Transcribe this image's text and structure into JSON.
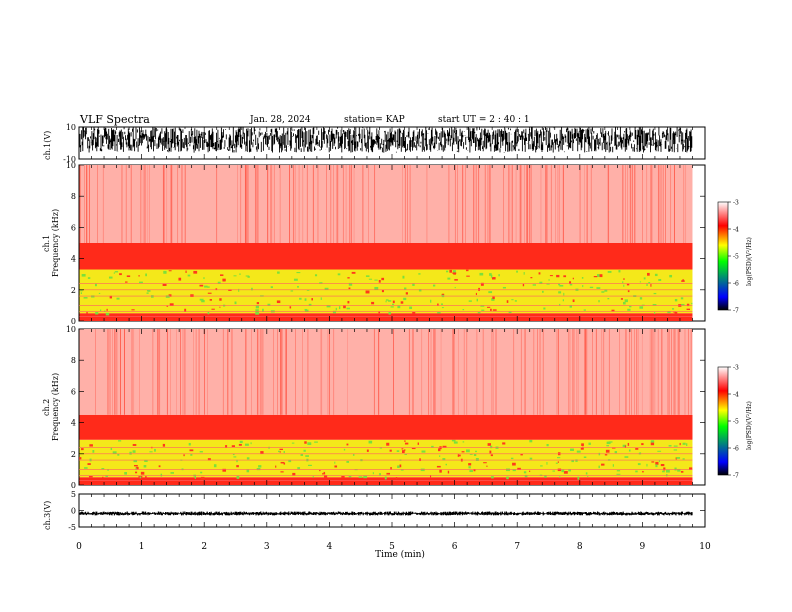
{
  "header": {
    "title": "VLF Spectra",
    "date": "Jan. 28, 2024",
    "station": "station= KAP",
    "start": "start  UT  =   2  : 40 : 1"
  },
  "colors": {
    "colormap": [
      "#000000",
      "#0000ff",
      "#00ff00",
      "#ffff00",
      "#ff0000",
      "#ffffff"
    ]
  },
  "chart_data": [
    {
      "type": "line",
      "id": "ch1-waveform",
      "ylabel": "ch.1(V)",
      "ylim": [
        -10,
        10
      ],
      "y_ticks": [
        "10",
        "-10"
      ],
      "xlim": [
        0,
        10
      ],
      "description_values": "Dense noisy waveform spanning roughly -6 to +10 V across 0 to 9.8 min"
    },
    {
      "type": "heatmap",
      "id": "ch1-spectrogram",
      "ylabel_top": "ch.1",
      "ylabel": "Frequency (kHz)",
      "ylim": [
        0,
        10
      ],
      "y_ticks": [
        "0",
        "2",
        "4",
        "6",
        "8",
        "10"
      ],
      "xlim": [
        0,
        10
      ],
      "data_x_end": 9.8,
      "bands": [
        {
          "f_from": 0.0,
          "f_to": 0.5,
          "level": "red"
        },
        {
          "f_from": 0.5,
          "f_to": 3.3,
          "level": "yellow-green"
        },
        {
          "f_from": 3.3,
          "f_to": 5.0,
          "level": "red"
        },
        {
          "f_from": 5.0,
          "f_to": 10.0,
          "level": "sparse red"
        }
      ],
      "colorbar": {
        "label": "log(PSD)(V²/Hz)",
        "range": [
          -7,
          -3
        ],
        "ticks": [
          "-3",
          "-4",
          "-5",
          "-6",
          "-7"
        ]
      }
    },
    {
      "type": "heatmap",
      "id": "ch2-spectrogram",
      "ylabel_top": "ch.2",
      "ylabel": "Frequency (kHz)",
      "ylim": [
        0,
        10
      ],
      "y_ticks": [
        "0",
        "2",
        "4",
        "6",
        "8",
        "10"
      ],
      "xlim": [
        0,
        10
      ],
      "data_x_end": 9.8,
      "bands": [
        {
          "f_from": 0.0,
          "f_to": 0.5,
          "level": "red"
        },
        {
          "f_from": 0.5,
          "f_to": 2.9,
          "level": "yellow-green"
        },
        {
          "f_from": 2.9,
          "f_to": 4.5,
          "level": "red"
        },
        {
          "f_from": 4.5,
          "f_to": 10.0,
          "level": "sparse red"
        }
      ],
      "colorbar": {
        "label": "log(PSD)(V²/Hz)",
        "range": [
          -7,
          -3
        ],
        "ticks": [
          "-3",
          "-4",
          "-5",
          "-6",
          "-7"
        ]
      }
    },
    {
      "type": "line",
      "id": "ch3-waveform",
      "ylabel": "ch.3(V)",
      "ylim": [
        -5,
        5
      ],
      "y_ticks": [
        "5",
        "0",
        "-5"
      ],
      "xlim": [
        0,
        10
      ],
      "description_values": "Thin noisy band near -1 V across 0 to 9.8 min"
    }
  ],
  "x_axis": {
    "label": "Time (min)",
    "ticks": [
      "0",
      "1",
      "2",
      "3",
      "4",
      "5",
      "6",
      "7",
      "8",
      "9",
      "10"
    ]
  }
}
